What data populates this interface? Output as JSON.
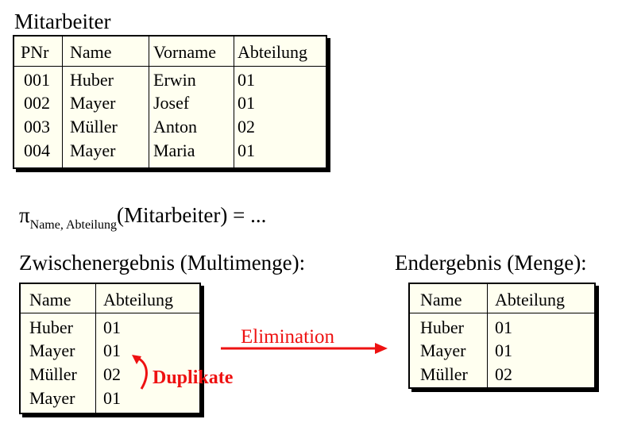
{
  "mitarbeiter": {
    "title": "Mitarbeiter",
    "headers": [
      "PNr",
      "Name",
      "Vorname",
      "Abteilung"
    ],
    "rows": [
      [
        "001",
        "Huber",
        "Erwin",
        "01"
      ],
      [
        "002",
        "Mayer",
        "Josef",
        "01"
      ],
      [
        "003",
        "Müller",
        "Anton",
        "02"
      ],
      [
        "004",
        "Mayer",
        "Maria",
        "01"
      ]
    ]
  },
  "projection": {
    "symbol": "π",
    "subscript": "Name, Abteilung",
    "argument": "(Mitarbeiter) = ..."
  },
  "intermediate": {
    "title": "Zwischenergebnis (Multimenge):",
    "headers": [
      "Name",
      "Abteilung"
    ],
    "rows": [
      [
        "Huber",
        "01"
      ],
      [
        "Mayer",
        "01"
      ],
      [
        "Müller",
        "02"
      ],
      [
        "Mayer",
        "01"
      ]
    ]
  },
  "final": {
    "title": "Endergebnis (Menge):",
    "headers": [
      "Name",
      "Abteilung"
    ],
    "rows": [
      [
        "Huber",
        "01"
      ],
      [
        "Mayer",
        "01"
      ],
      [
        "Müller",
        "02"
      ]
    ]
  },
  "annotations": {
    "elimination": "Elimination",
    "duplicates": "Duplikate"
  },
  "colors": {
    "accent": "#ee1111",
    "table_fill": "#fffff0"
  }
}
